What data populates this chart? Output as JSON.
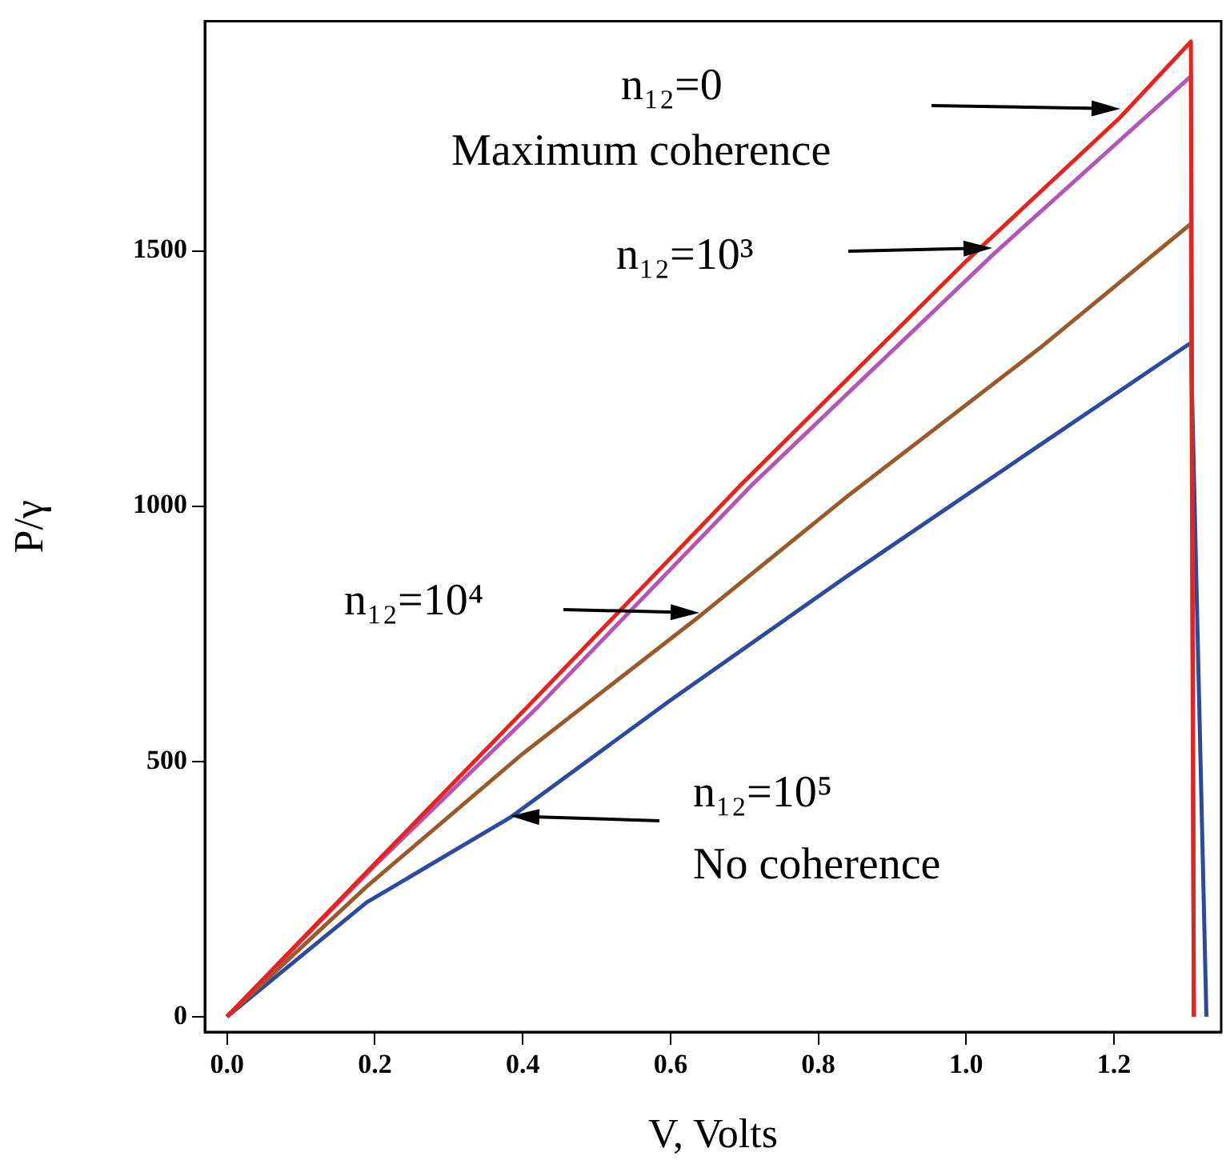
{
  "chart_data": {
    "type": "line",
    "xlabel": "V, Volts",
    "ylabel": "P/γ",
    "xlim": [
      -0.03,
      1.345
    ],
    "ylim": [
      -30,
      1950
    ],
    "xticks": [
      {
        "value": 0,
        "label": "0.0"
      },
      {
        "value": 0.2,
        "label": "0.2"
      },
      {
        "value": 0.4,
        "label": "0.4"
      },
      {
        "value": 0.6,
        "label": "0.6"
      },
      {
        "value": 0.8,
        "label": "0.8"
      },
      {
        "value": 1,
        "label": "1.0"
      },
      {
        "value": 1.2,
        "label": "1.2"
      }
    ],
    "yticks": [
      0,
      500,
      1000,
      1500
    ],
    "grid": false,
    "legend": false,
    "marker": "none",
    "line_style": "solid",
    "series": [
      {
        "color": "#e8231c",
        "x": [
          0,
          0.2,
          0.406,
          0.694,
          1.0,
          1.208,
          1.304,
          1.308
        ],
        "values": [
          0,
          300,
          606,
          1040,
          1480,
          1761,
          1910,
          0
        ]
      },
      {
        "color": "#b555b5",
        "x": [
          0,
          0.2,
          0.42,
          0.709,
          1.035,
          1.304,
          1.308
        ],
        "values": [
          0,
          296,
          606,
          1040,
          1491,
          1842,
          0
        ]
      },
      {
        "color": "#9a5a2a",
        "x": [
          0,
          0.189,
          0.4,
          0.638,
          0.839,
          1.1,
          1.304,
          1.308
        ],
        "values": [
          0,
          255,
          515,
          783,
          1019,
          1310,
          1553,
          0
        ]
      },
      {
        "color": "#2c4aa0",
        "x": [
          0,
          0.189,
          0.384,
          0.6,
          0.839,
          1.1,
          1.304,
          1.325
        ],
        "values": [
          0,
          224,
          391,
          620,
          863,
          1120,
          1320,
          0
        ]
      }
    ],
    "annotations": [
      "n₁₂=0",
      "Maximum coherence",
      "n₁₂=10³",
      "n₁₂=10⁴",
      "n₁₂=10⁵",
      "No coherence"
    ]
  }
}
